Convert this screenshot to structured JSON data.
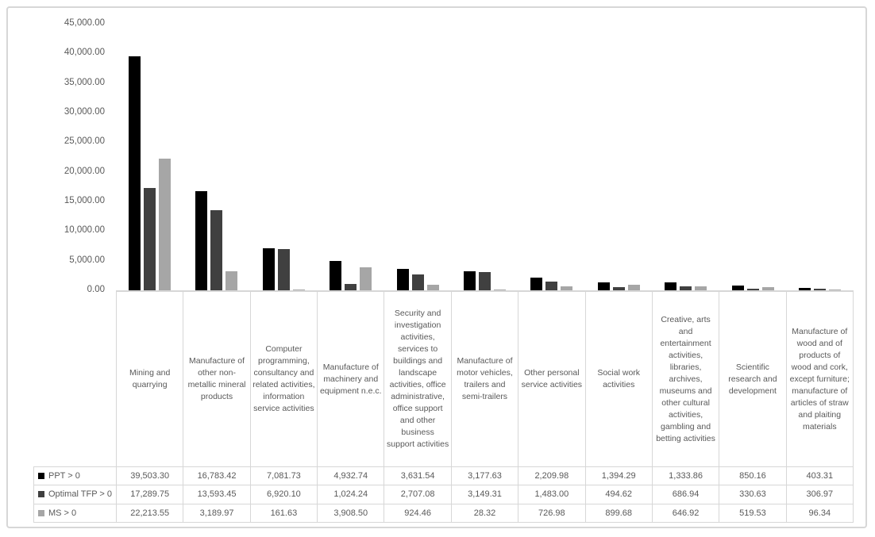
{
  "chart_data": {
    "type": "bar",
    "title": "",
    "xlabel": "",
    "ylabel": "",
    "grid": false,
    "legend_position": "table-left",
    "y_axis": {
      "min": 0,
      "max": 45000,
      "tick_step": 5000,
      "tick_labels": [
        "45,000.00",
        "40,000.00",
        "35,000.00",
        "30,000.00",
        "25,000.00",
        "20,000.00",
        "15,000.00",
        "10,000.00",
        "5,000.00",
        "0.00"
      ]
    },
    "categories": [
      "Mining and quarrying",
      "Manufacture of other non-metallic mineral products",
      "Computer programming, consultancy and related activities, information service activities",
      "Manufacture of machinery and equipment n.e.c.",
      "Security and investigation activities, services to buildings and landscape activities, office administrative, office support and other business support activities",
      "Manufacture of motor vehicles, trailers and semi-trailers",
      "Other personal service activities",
      "Social work activities",
      "Creative, arts and entertainment activities, libraries, archives, museums and other cultural activities, gambling and betting activities",
      "Scientific research and development",
      "Manufacture of wood and of products of wood and cork, except furniture; manufacture of articles of straw and plaiting materials"
    ],
    "series": [
      {
        "name": "PPT > 0",
        "color": "#000000",
        "values": [
          39503.3,
          16783.42,
          7081.73,
          4932.74,
          3631.54,
          3177.63,
          2209.98,
          1394.29,
          1333.86,
          850.16,
          403.31
        ],
        "labels": [
          "39,503.30",
          "16,783.42",
          "7,081.73",
          "4,932.74",
          "3,631.54",
          "3,177.63",
          "2,209.98",
          "1,394.29",
          "1,333.86",
          "850.16",
          "403.31"
        ]
      },
      {
        "name": "Optimal TFP > 0",
        "color": "#404040",
        "values": [
          17289.75,
          13593.45,
          6920.1,
          1024.24,
          2707.08,
          3149.31,
          1483.0,
          494.62,
          686.94,
          330.63,
          306.97
        ],
        "labels": [
          "17,289.75",
          "13,593.45",
          "6,920.10",
          "1,024.24",
          "2,707.08",
          "3,149.31",
          "1,483.00",
          "494.62",
          "686.94",
          "330.63",
          "306.97"
        ]
      },
      {
        "name": "MS > 0",
        "color": "#a6a6a6",
        "values": [
          22213.55,
          3189.97,
          161.63,
          3908.5,
          924.46,
          28.32,
          726.98,
          899.68,
          646.92,
          519.53,
          96.34
        ],
        "labels": [
          "22,213.55",
          "3,189.97",
          "161.63",
          "3,908.50",
          "924.46",
          "28.32",
          "726.98",
          "899.68",
          "646.92",
          "519.53",
          "96.34"
        ]
      }
    ]
  }
}
